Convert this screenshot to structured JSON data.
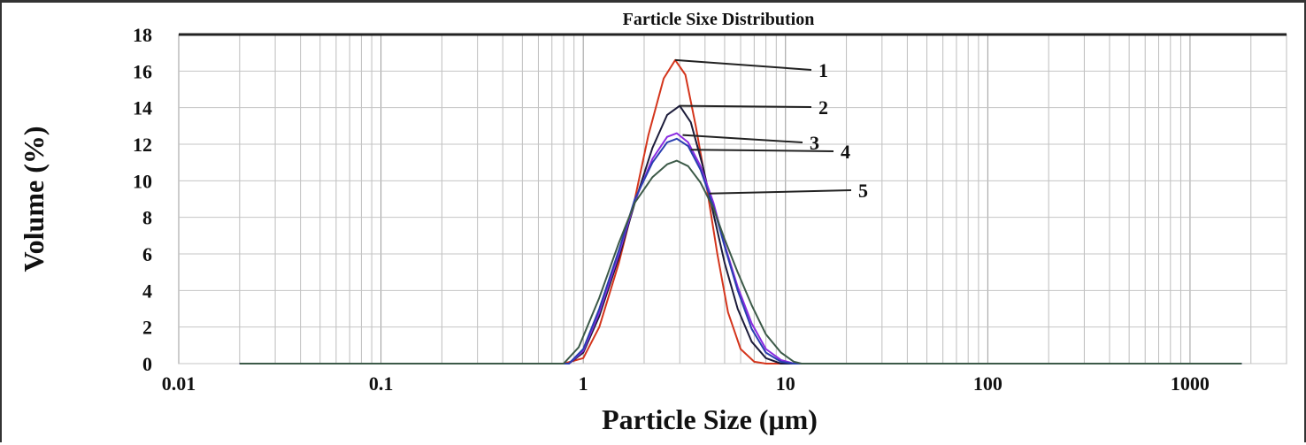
{
  "chart_data": {
    "type": "line",
    "title": "Farticle Sixe Distribution",
    "xlabel": "Particle  Size (μm)",
    "ylabel": "Volume (%)",
    "xscale": "log",
    "xlim": [
      0.01,
      3000
    ],
    "ylim": [
      0,
      18
    ],
    "xticks": [
      0.01,
      0.1,
      1,
      10,
      100,
      1000
    ],
    "xtick_labels": [
      "0.01",
      "0.1",
      "1",
      "10",
      "100",
      "1000"
    ],
    "yticks": [
      0,
      2,
      4,
      6,
      8,
      10,
      12,
      14,
      16,
      18
    ],
    "ytick_labels": [
      "0",
      "2",
      "4",
      "6",
      "8",
      "10",
      "12",
      "14",
      "16",
      "18"
    ],
    "grid": true,
    "series": [
      {
        "name": "1",
        "color": "#d4351c",
        "points": [
          [
            0.02,
            0
          ],
          [
            0.8,
            0
          ],
          [
            1.0,
            0.3
          ],
          [
            1.2,
            2.0
          ],
          [
            1.5,
            5.5
          ],
          [
            1.8,
            9.0
          ],
          [
            2.1,
            12.5
          ],
          [
            2.5,
            15.6
          ],
          [
            2.85,
            16.6
          ],
          [
            3.2,
            15.8
          ],
          [
            3.6,
            13.0
          ],
          [
            4.1,
            9.5
          ],
          [
            4.6,
            6.0
          ],
          [
            5.2,
            2.8
          ],
          [
            6.0,
            0.8
          ],
          [
            7.0,
            0.1
          ],
          [
            8.0,
            0
          ],
          [
            1800,
            0
          ]
        ]
      },
      {
        "name": "2",
        "color": "#1c1c3a",
        "points": [
          [
            0.02,
            0
          ],
          [
            0.85,
            0
          ],
          [
            1.0,
            0.6
          ],
          [
            1.2,
            2.6
          ],
          [
            1.5,
            5.8
          ],
          [
            1.8,
            8.8
          ],
          [
            2.2,
            11.8
          ],
          [
            2.6,
            13.6
          ],
          [
            3.0,
            14.1
          ],
          [
            3.4,
            13.2
          ],
          [
            3.9,
            10.8
          ],
          [
            4.4,
            8.2
          ],
          [
            5.0,
            5.5
          ],
          [
            5.8,
            3.0
          ],
          [
            6.8,
            1.2
          ],
          [
            8.0,
            0.3
          ],
          [
            9.5,
            0
          ],
          [
            1800,
            0
          ]
        ]
      },
      {
        "name": "3",
        "color": "#8a2be2",
        "points": [
          [
            0.02,
            0
          ],
          [
            0.85,
            0
          ],
          [
            1.0,
            0.7
          ],
          [
            1.2,
            2.8
          ],
          [
            1.5,
            6.0
          ],
          [
            1.8,
            8.9
          ],
          [
            2.2,
            11.2
          ],
          [
            2.6,
            12.4
          ],
          [
            2.9,
            12.6
          ],
          [
            3.3,
            12.1
          ],
          [
            3.8,
            10.8
          ],
          [
            4.4,
            8.8
          ],
          [
            5.0,
            6.5
          ],
          [
            5.8,
            4.2
          ],
          [
            6.8,
            2.2
          ],
          [
            8.0,
            0.8
          ],
          [
            9.5,
            0.2
          ],
          [
            11.0,
            0
          ],
          [
            1800,
            0
          ]
        ]
      },
      {
        "name": "4",
        "color": "#2a3fb0",
        "points": [
          [
            0.02,
            0
          ],
          [
            0.85,
            0
          ],
          [
            1.0,
            0.8
          ],
          [
            1.2,
            3.0
          ],
          [
            1.5,
            6.2
          ],
          [
            1.8,
            9.0
          ],
          [
            2.2,
            11.0
          ],
          [
            2.6,
            12.1
          ],
          [
            2.9,
            12.3
          ],
          [
            3.3,
            11.9
          ],
          [
            3.8,
            10.6
          ],
          [
            4.4,
            8.6
          ],
          [
            5.0,
            6.4
          ],
          [
            5.8,
            4.0
          ],
          [
            6.8,
            1.9
          ],
          [
            8.0,
            0.6
          ],
          [
            9.5,
            0.1
          ],
          [
            11.0,
            0
          ],
          [
            1800,
            0
          ]
        ]
      },
      {
        "name": "5",
        "color": "#3c5a48",
        "points": [
          [
            0.02,
            0
          ],
          [
            0.8,
            0
          ],
          [
            0.95,
            0.9
          ],
          [
            1.2,
            3.6
          ],
          [
            1.5,
            6.6
          ],
          [
            1.8,
            8.8
          ],
          [
            2.2,
            10.2
          ],
          [
            2.6,
            10.9
          ],
          [
            2.9,
            11.1
          ],
          [
            3.3,
            10.8
          ],
          [
            3.8,
            9.9
          ],
          [
            4.4,
            8.5
          ],
          [
            5.0,
            6.8
          ],
          [
            5.8,
            5.0
          ],
          [
            6.8,
            3.2
          ],
          [
            8.0,
            1.6
          ],
          [
            9.5,
            0.6
          ],
          [
            11.0,
            0.1
          ],
          [
            12.0,
            0
          ],
          [
            1800,
            0
          ]
        ]
      }
    ]
  }
}
